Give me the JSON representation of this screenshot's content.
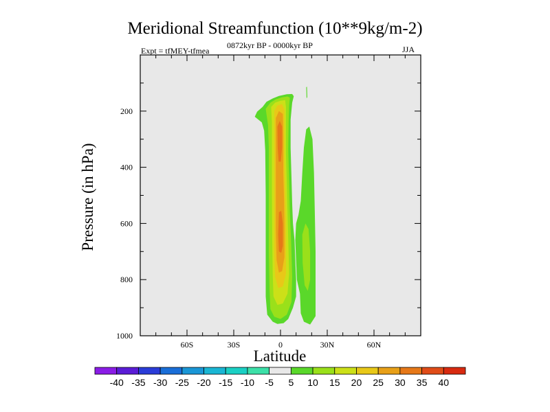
{
  "chart_data": {
    "type": "contour",
    "title": "Meridional Streamfunction (10**9kg/m-2)",
    "subtitle_left": "Expt = tfMEY-tfmea",
    "subtitle_center": "0872kyr BP - 0000kyr BP",
    "subtitle_right": "JJA",
    "xlabel": "Latitude",
    "ylabel": "Pressure (in hPa)",
    "xlim": [
      -90,
      90
    ],
    "ylim": [
      1000,
      0
    ],
    "x_ticks": [
      {
        "value": -60,
        "label": "60S"
      },
      {
        "value": -30,
        "label": "30S"
      },
      {
        "value": 0,
        "label": "0"
      },
      {
        "value": 30,
        "label": "30N"
      },
      {
        "value": 60,
        "label": "60N"
      }
    ],
    "y_ticks": [
      {
        "value": 200,
        "label": "200"
      },
      {
        "value": 400,
        "label": "400"
      },
      {
        "value": 600,
        "label": "600"
      },
      {
        "value": 800,
        "label": "800"
      },
      {
        "value": 1000,
        "label": "1000"
      }
    ],
    "background_color": "#e8e8e8",
    "colorbar": {
      "labels": [
        "-40",
        "-35",
        "-30",
        "-25",
        "-20",
        "-15",
        "-10",
        "-5",
        "5",
        "10",
        "15",
        "20",
        "25",
        "30",
        "35",
        "40"
      ],
      "colors": [
        "#8a1ce6",
        "#5a1cd6",
        "#2a3cd8",
        "#1a6ed8",
        "#1a96d6",
        "#1ab6d4",
        "#1ad0c4",
        "#3ce0a8",
        "#e8e8e8",
        "#5ad82a",
        "#9ae01a",
        "#cce018",
        "#e8c818",
        "#e8a018",
        "#e67818",
        "#e04c18",
        "#d82a10"
      ]
    },
    "contours": [
      {
        "name": "positive-5",
        "value": 5,
        "color": "#5ad82a",
        "polygon": [
          [
            -16.5,
            220
          ],
          [
            -15,
            202
          ],
          [
            -11.5,
            185
          ],
          [
            -9,
            167
          ],
          [
            -5,
            155
          ],
          [
            -1,
            146
          ],
          [
            4,
            140
          ],
          [
            7.5,
            139
          ],
          [
            8.5,
            147
          ],
          [
            7.5,
            170
          ],
          [
            6.5,
            230
          ],
          [
            6.5,
            330
          ],
          [
            7,
            430
          ],
          [
            7.5,
            530
          ],
          [
            8,
            600
          ],
          [
            9,
            660
          ],
          [
            10,
            800
          ],
          [
            10,
            860
          ],
          [
            8,
            900
          ],
          [
            5,
            940
          ],
          [
            2,
            955
          ],
          [
            -2,
            958
          ],
          [
            -5,
            950
          ],
          [
            -8.5,
            925
          ],
          [
            -9.5,
            860
          ],
          [
            -9.5,
            700
          ],
          [
            -9.5,
            500
          ],
          [
            -9.8,
            340
          ],
          [
            -10.5,
            270
          ],
          [
            -12,
            240
          ]
        ]
      },
      {
        "name": "positive-10",
        "value": 10,
        "color": "#9ae01a",
        "polygon": [
          [
            -9.5,
            192
          ],
          [
            -6.5,
            170
          ],
          [
            -3,
            158
          ],
          [
            1,
            151
          ],
          [
            4.5,
            148
          ],
          [
            6,
            152
          ],
          [
            5.5,
            180
          ],
          [
            5.2,
            240
          ],
          [
            5,
            340
          ],
          [
            5.5,
            450
          ],
          [
            6,
            560
          ],
          [
            6.8,
            660
          ],
          [
            7.5,
            790
          ],
          [
            7,
            880
          ],
          [
            4,
            925
          ],
          [
            0,
            940
          ],
          [
            -4,
            932
          ],
          [
            -6.5,
            905
          ],
          [
            -7,
            840
          ],
          [
            -7.5,
            700
          ],
          [
            -7.5,
            500
          ],
          [
            -7.5,
            330
          ],
          [
            -8,
            250
          ]
        ]
      },
      {
        "name": "positive-15",
        "value": 15,
        "color": "#cce018",
        "polygon": [
          [
            -6,
            185
          ],
          [
            -3.5,
            170
          ],
          [
            0,
            163
          ],
          [
            3,
            161
          ],
          [
            3.5,
            185
          ],
          [
            3.5,
            250
          ],
          [
            3.5,
            350
          ],
          [
            4,
            450
          ],
          [
            4.5,
            560
          ],
          [
            5,
            660
          ],
          [
            5.5,
            780
          ],
          [
            4.5,
            850
          ],
          [
            1.5,
            885
          ],
          [
            -2,
            890
          ],
          [
            -4.5,
            860
          ],
          [
            -5,
            780
          ],
          [
            -5.3,
            660
          ],
          [
            -5.5,
            500
          ],
          [
            -5.5,
            350
          ],
          [
            -5.5,
            240
          ]
        ]
      },
      {
        "name": "positive-20",
        "value": 20,
        "color": "#e8c818",
        "polygon": [
          [
            -4,
            200
          ],
          [
            -2,
            180
          ],
          [
            1,
            175
          ],
          [
            2.5,
            195
          ],
          [
            2.5,
            270
          ],
          [
            2.5,
            380
          ],
          [
            3,
            480
          ],
          [
            3.5,
            590
          ],
          [
            3.5,
            700
          ],
          [
            3.5,
            780
          ],
          [
            1.5,
            825
          ],
          [
            -1.5,
            830
          ],
          [
            -3.5,
            790
          ],
          [
            -4,
            700
          ],
          [
            -4,
            600
          ],
          [
            -4,
            480
          ],
          [
            -4,
            360
          ],
          [
            -4,
            260
          ]
        ]
      },
      {
        "name": "positive-25",
        "value": 25,
        "color": "#e8a018",
        "polygon": [
          [
            -3,
            225
          ],
          [
            -1,
            200
          ],
          [
            1.5,
            210
          ],
          [
            1.8,
            290
          ],
          [
            1.8,
            420
          ],
          [
            2.3,
            520
          ],
          [
            2.5,
            620
          ],
          [
            2.5,
            720
          ],
          [
            1,
            770
          ],
          [
            -1,
            775
          ],
          [
            -2.5,
            730
          ],
          [
            -3,
            620
          ],
          [
            -3,
            500
          ],
          [
            -3,
            380
          ],
          [
            -3,
            290
          ]
        ]
      },
      {
        "name": "positive-30",
        "value": 30,
        "color": "#e67818",
        "polygon": [
          [
            -2,
            255
          ],
          [
            -0.5,
            235
          ],
          [
            1,
            255
          ],
          [
            1,
            330
          ],
          [
            0.2,
            380
          ],
          [
            -1.2,
            380
          ],
          [
            -1.8,
            330
          ]
        ]
      },
      {
        "name": "positive-30-lower",
        "value": 30,
        "color": "#e67818",
        "polygon": [
          [
            -1,
            560
          ],
          [
            0.5,
            555
          ],
          [
            1.5,
            600
          ],
          [
            1.5,
            680
          ],
          [
            0.5,
            705
          ],
          [
            -1,
            700
          ],
          [
            -1.5,
            640
          ]
        ]
      },
      {
        "name": "east-5",
        "value": 5,
        "color": "#5ad82a",
        "polygon": [
          [
            16.5,
            265
          ],
          [
            18.5,
            255
          ],
          [
            20.5,
            300
          ],
          [
            21.5,
            420
          ],
          [
            22,
            560
          ],
          [
            22.5,
            700
          ],
          [
            22.5,
            820
          ],
          [
            22.5,
            930
          ],
          [
            19,
            960
          ],
          [
            15,
            950
          ],
          [
            13,
            920
          ],
          [
            12.5,
            850
          ],
          [
            10.5,
            800
          ],
          [
            9.5,
            660
          ],
          [
            10,
            600
          ],
          [
            11.5,
            570
          ],
          [
            13,
            520
          ],
          [
            14,
            420
          ],
          [
            15,
            330
          ]
        ]
      },
      {
        "name": "east-10",
        "value": 10,
        "color": "#9ae01a",
        "polygon": [
          [
            14,
            640
          ],
          [
            16,
            600
          ],
          [
            18,
            620
          ],
          [
            19,
            700
          ],
          [
            19,
            800
          ],
          [
            17.5,
            840
          ],
          [
            15.5,
            820
          ],
          [
            14.2,
            740
          ]
        ]
      },
      {
        "name": "east-sliver-5",
        "value": 5,
        "color": "#5ad82a",
        "polygon": [
          [
            16.5,
            115
          ],
          [
            17,
            113
          ],
          [
            17.2,
            150
          ],
          [
            16.7,
            155
          ]
        ]
      }
    ]
  }
}
